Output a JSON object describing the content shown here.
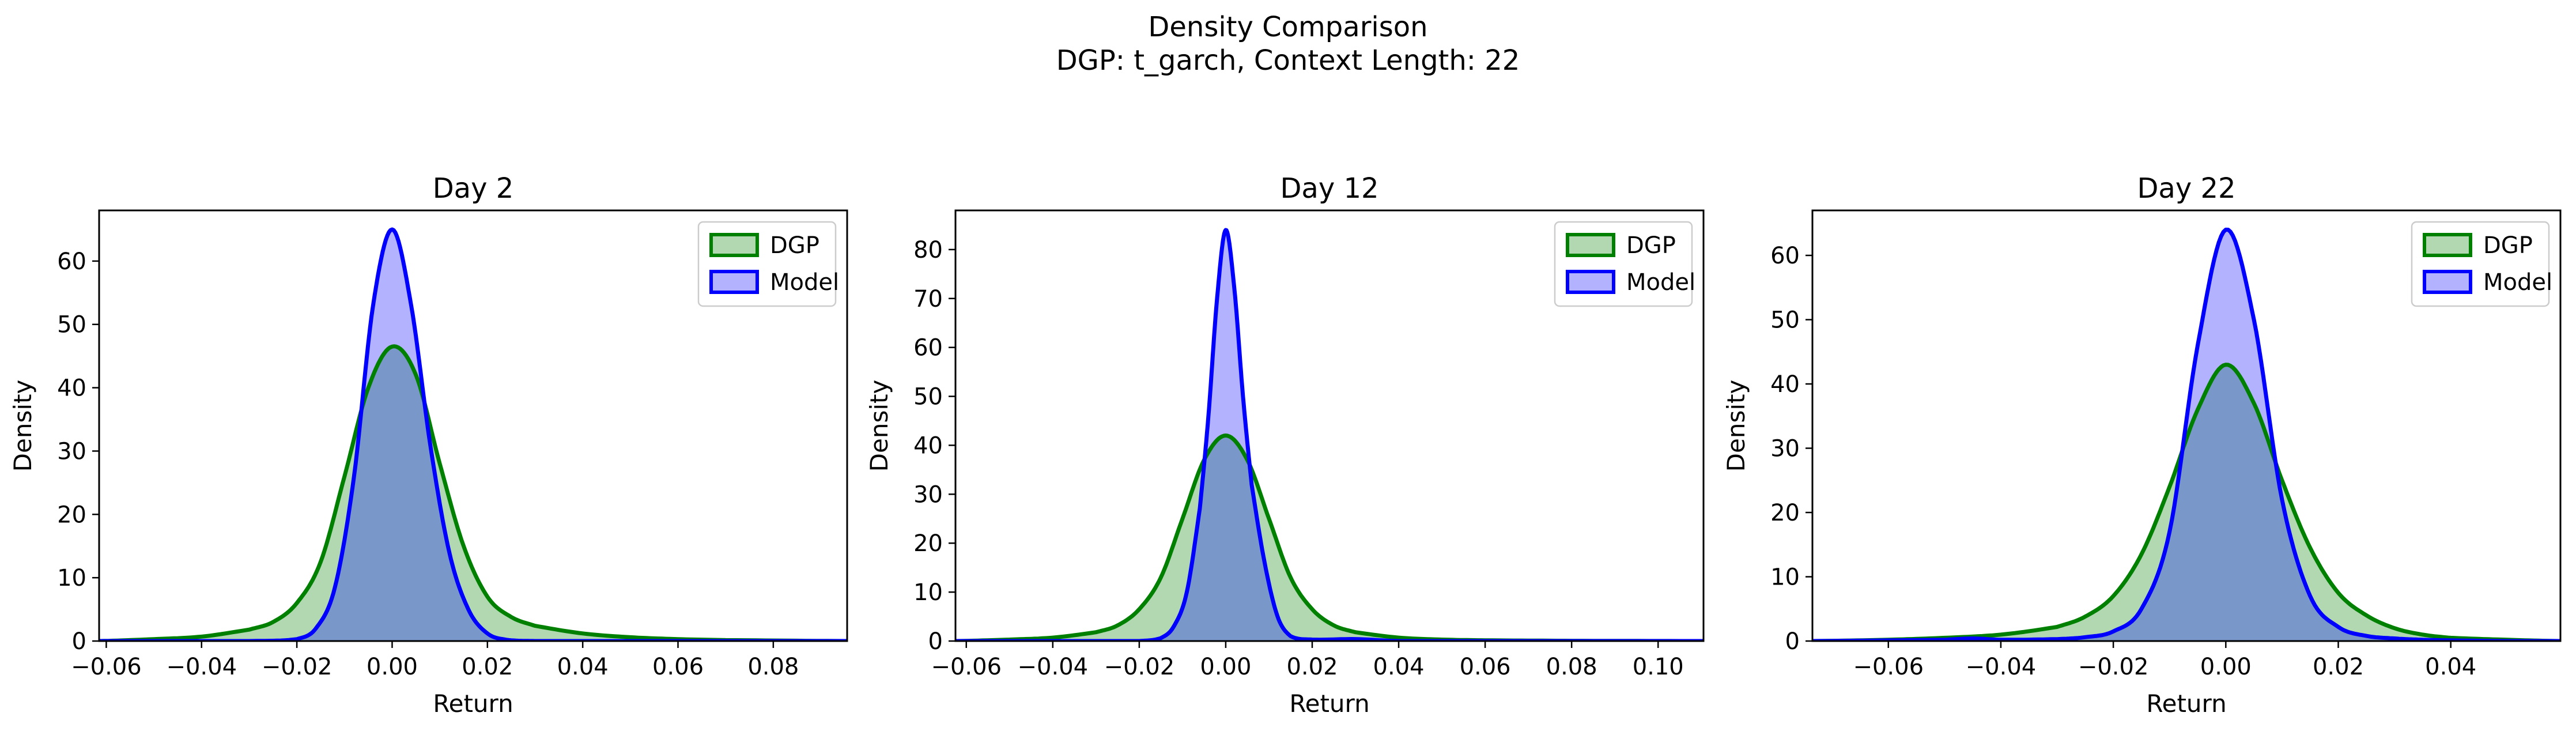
{
  "figure": {
    "title_line1": "Density Comparison",
    "title_line2": "DGP: t_garch, Context Length: 22"
  },
  "colors": {
    "dgp_line": "#008000",
    "dgp_fill": "#b2d8b2",
    "model_line": "#0000ff",
    "model_fill": "#b2b2ff",
    "overlap_fill": "#7a97c9"
  },
  "chart_data": [
    {
      "type": "area",
      "title": "Day 2",
      "xlabel": "Return",
      "ylabel": "Density",
      "xlim": [
        -0.0615,
        0.0955
      ],
      "ylim": [
        0,
        68
      ],
      "xticks": [
        -0.06,
        -0.04,
        -0.02,
        0.0,
        0.02,
        0.04,
        0.06,
        0.08
      ],
      "xtick_labels": [
        "−0.06",
        "−0.04",
        "−0.02",
        "0.00",
        "0.02",
        "0.04",
        "0.06",
        "0.08"
      ],
      "yticks": [
        0,
        10,
        20,
        30,
        40,
        50,
        60
      ],
      "ytick_labels": [
        "0",
        "10",
        "20",
        "30",
        "40",
        "50",
        "60"
      ],
      "legend": {
        "position": "top-right",
        "entries": [
          "DGP",
          "Model"
        ]
      },
      "series": [
        {
          "name": "DGP",
          "x": [
            -0.0615,
            -0.05,
            -0.04,
            -0.03,
            -0.025,
            -0.02,
            -0.015,
            -0.01,
            -0.005,
            0,
            0.005,
            0.01,
            0.015,
            0.02,
            0.025,
            0.03,
            0.04,
            0.05,
            0.06,
            0.07,
            0.0955
          ],
          "y": [
            0,
            0.3,
            0.7,
            1.8,
            3,
            6,
            12.5,
            26,
            40,
            46.5,
            42,
            28,
            15,
            7,
            3.8,
            2.4,
            1.2,
            0.6,
            0.3,
            0.15,
            0
          ]
        },
        {
          "name": "Model",
          "x": [
            -0.0615,
            -0.03,
            -0.02,
            -0.016,
            -0.012,
            -0.008,
            -0.004,
            0,
            0.004,
            0.008,
            0.012,
            0.016,
            0.02,
            0.024,
            0.03,
            0.0955
          ],
          "y": [
            0,
            0,
            0.3,
            2,
            8.5,
            26,
            53,
            65,
            53,
            31,
            14,
            5,
            1.2,
            0.2,
            0,
            0
          ]
        }
      ]
    },
    {
      "type": "area",
      "title": "Day 12",
      "xlabel": "Return",
      "ylabel": "Density",
      "xlim": [
        -0.0625,
        0.1105
      ],
      "ylim": [
        0,
        88
      ],
      "xticks": [
        -0.06,
        -0.04,
        -0.02,
        0.0,
        0.02,
        0.04,
        0.06,
        0.08,
        0.1
      ],
      "xtick_labels": [
        "−0.06",
        "−0.04",
        "−0.02",
        "0.00",
        "0.02",
        "0.04",
        "0.06",
        "0.08",
        "0.10"
      ],
      "yticks": [
        0,
        10,
        20,
        30,
        40,
        50,
        60,
        70,
        80
      ],
      "ytick_labels": [
        "0",
        "10",
        "20",
        "30",
        "40",
        "50",
        "60",
        "70",
        "80"
      ],
      "legend": {
        "position": "top-right",
        "entries": [
          "DGP",
          "Model"
        ]
      },
      "series": [
        {
          "name": "DGP",
          "x": [
            -0.0625,
            -0.05,
            -0.04,
            -0.03,
            -0.025,
            -0.02,
            -0.015,
            -0.01,
            -0.005,
            0,
            0.005,
            0.01,
            0.015,
            0.02,
            0.025,
            0.03,
            0.04,
            0.05,
            0.06,
            0.08,
            0.1105
          ],
          "y": [
            0,
            0.3,
            0.7,
            1.8,
            3.2,
            6.5,
            13,
            25,
            37,
            42,
            37,
            25,
            13,
            6.5,
            3.2,
            1.8,
            0.7,
            0.3,
            0.15,
            0.05,
            0
          ]
        },
        {
          "name": "Model",
          "x": [
            -0.0625,
            -0.02,
            -0.015,
            -0.012,
            -0.009,
            -0.006,
            -0.004,
            -0.002,
            0,
            0.002,
            0.004,
            0.006,
            0.009,
            0.012,
            0.015,
            0.02,
            0.03,
            0.04,
            0.1105
          ],
          "y": [
            0,
            0,
            0.6,
            3,
            10,
            27,
            46,
            70,
            84,
            72,
            50,
            32,
            16,
            5,
            1,
            0.3,
            0.4,
            0,
            0
          ]
        }
      ]
    },
    {
      "type": "area",
      "title": "Day 22",
      "xlabel": "Return",
      "ylabel": "Density",
      "xlim": [
        -0.0735,
        0.0595
      ],
      "ylim": [
        0,
        67
      ],
      "xticks": [
        -0.06,
        -0.04,
        -0.02,
        0.0,
        0.02,
        0.04
      ],
      "xtick_labels": [
        "−0.06",
        "−0.04",
        "−0.02",
        "0.00",
        "0.02",
        "0.04"
      ],
      "yticks": [
        0,
        10,
        20,
        30,
        40,
        50,
        60
      ],
      "ytick_labels": [
        "0",
        "10",
        "20",
        "30",
        "40",
        "50",
        "60"
      ],
      "legend": {
        "position": "top-right",
        "entries": [
          "DGP",
          "Model"
        ]
      },
      "series": [
        {
          "name": "DGP",
          "x": [
            -0.0735,
            -0.06,
            -0.05,
            -0.04,
            -0.03,
            -0.025,
            -0.02,
            -0.015,
            -0.01,
            -0.005,
            0,
            0.005,
            0.01,
            0.015,
            0.02,
            0.025,
            0.03,
            0.035,
            0.04,
            0.05,
            0.0595
          ],
          "y": [
            0,
            0.2,
            0.5,
            1,
            2.2,
            3.8,
            7,
            13.5,
            24,
            36,
            43,
            37,
            25,
            14.5,
            7.5,
            4,
            2,
            1,
            0.5,
            0.2,
            0
          ]
        },
        {
          "name": "Model",
          "x": [
            -0.0735,
            -0.05,
            -0.045,
            -0.04,
            -0.03,
            -0.025,
            -0.02,
            -0.015,
            -0.01,
            -0.005,
            0,
            0.005,
            0.01,
            0.015,
            0.02,
            0.025,
            0.03,
            0.035,
            0.04,
            0.05,
            0.0595
          ],
          "y": [
            0,
            0.2,
            0.4,
            0.2,
            0.3,
            0.6,
            1.5,
            5,
            17,
            46,
            64,
            50,
            22,
            7,
            2.2,
            0.8,
            0.4,
            0.2,
            0.1,
            0,
            0
          ]
        }
      ]
    }
  ]
}
